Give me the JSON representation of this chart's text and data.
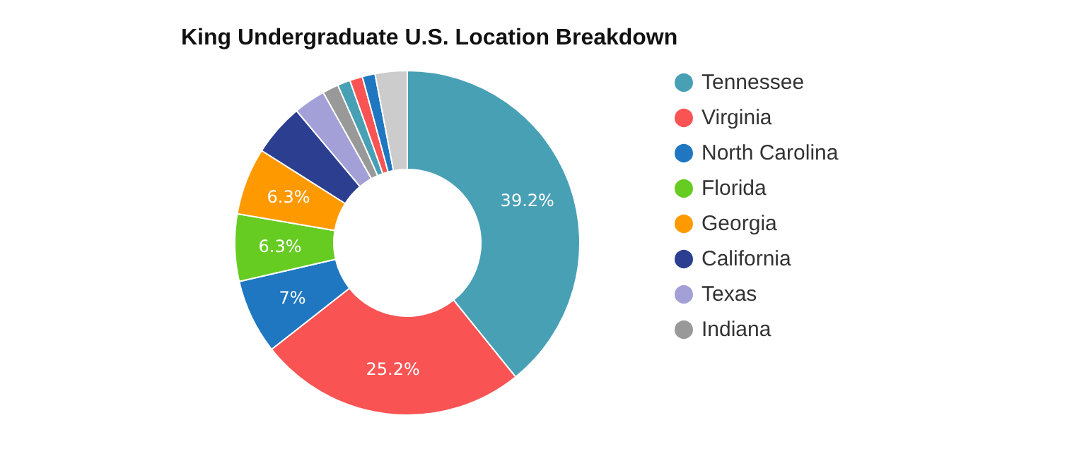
{
  "chart_data": {
    "type": "donut",
    "title": "King Undergraduate U.S. Location Breakdown",
    "categories": [
      "Tennessee",
      "Virginia",
      "North Carolina",
      "Florida",
      "Georgia",
      "California",
      "Texas",
      "Indiana",
      null,
      null,
      null,
      null
    ],
    "values": [
      39.2,
      25.2,
      7,
      6.3,
      6.3,
      4.9,
      3,
      1.5,
      1.2,
      1.2,
      1.2,
      3
    ],
    "colors": [
      "#48a0b5",
      "#f95353",
      "#1f77c1",
      "#66cc22",
      "#ff9900",
      "#2c3e90",
      "#a3a0d8",
      "#999999",
      "#48a0b5",
      "#f95353",
      "#1f77c1",
      "#cccccc"
    ],
    "value_labels": [
      "39.2%",
      "25.2%",
      "7%",
      "6.3%",
      "6.3%",
      null,
      null,
      null,
      null,
      null,
      null,
      null
    ],
    "legend": "right"
  }
}
